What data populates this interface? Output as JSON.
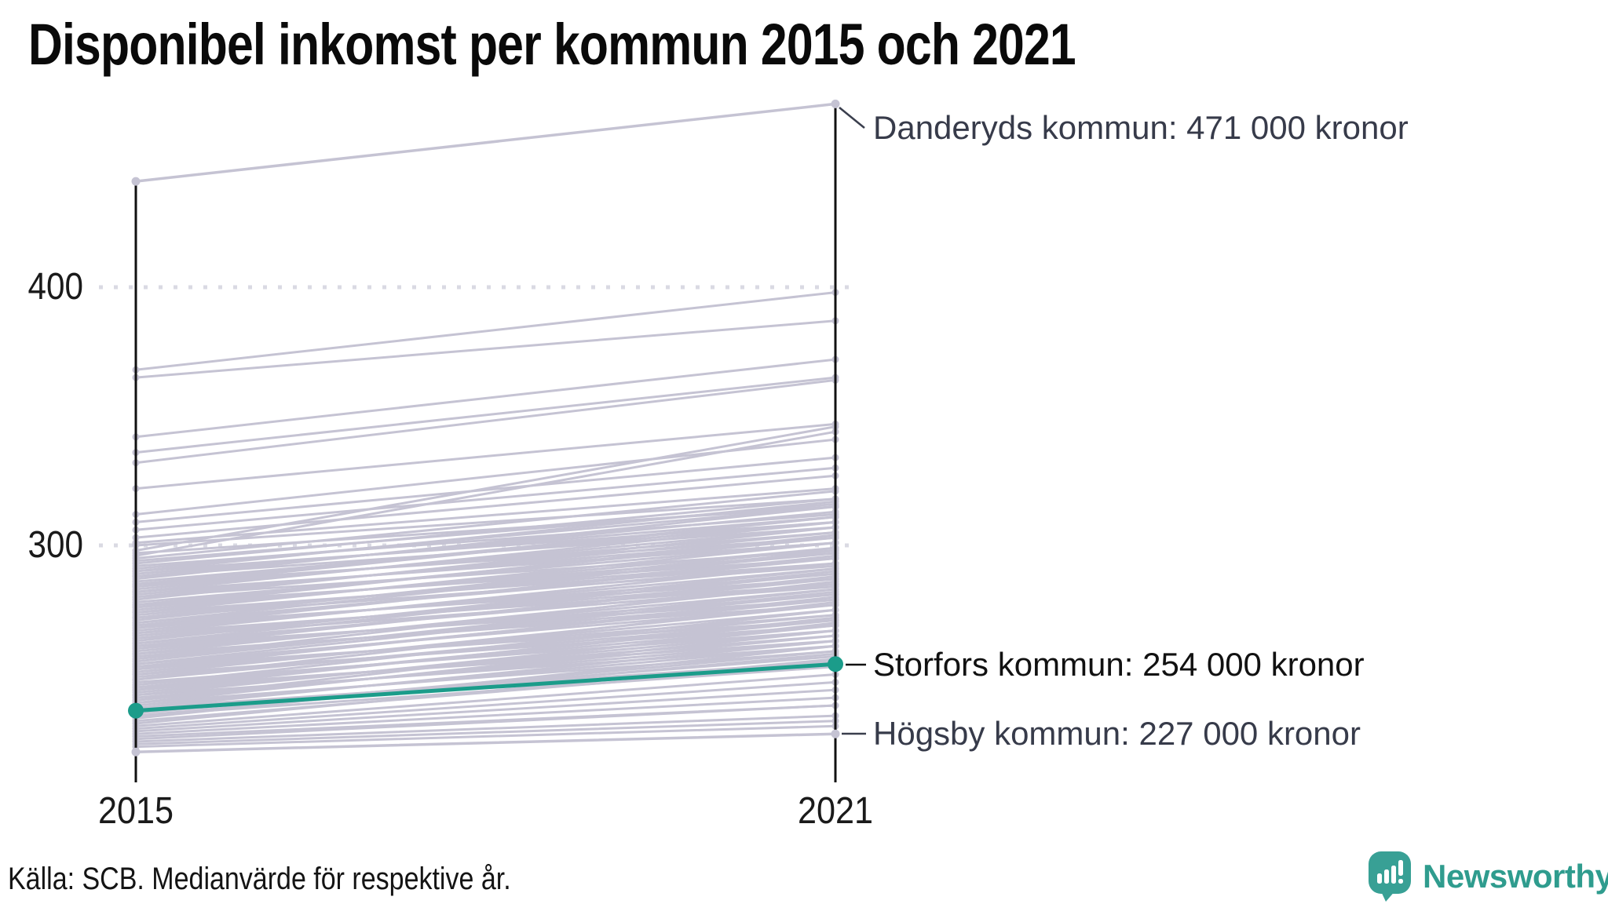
{
  "title": "Disponibel inkomst per kommun 2015 och 2021",
  "source": "Källa: SCB. Medianvärde för respektive år.",
  "logo": {
    "name": "Newsworthy"
  },
  "chart_data": {
    "type": "line",
    "subtype": "slope",
    "unit": "tusen kronor",
    "x_categories": [
      "2015",
      "2021"
    ],
    "y_ticks": [
      300,
      400
    ],
    "grid": "dotted horizontal lines at 300 and 400",
    "highlight": {
      "name": "Storfors kommun",
      "values": [
        236,
        254
      ],
      "label": "Storfors kommun: 254 000 kronor",
      "color": "#1b9c8a"
    },
    "labeled": [
      {
        "name": "Danderyds kommun",
        "values": [
          441,
          471
        ],
        "label": "Danderyds kommun: 471 000 kronor"
      },
      {
        "name": "Högsby kommun",
        "values": [
          220,
          227
        ],
        "label": "Högsby kommun: 227 000 kronor"
      }
    ],
    "background_lines": [
      [
        368,
        398
      ],
      [
        365,
        387
      ],
      [
        342,
        372
      ],
      [
        336,
        365
      ],
      [
        332,
        364
      ],
      [
        322,
        347
      ],
      [
        312,
        341
      ],
      [
        309,
        334
      ],
      [
        306,
        330
      ],
      [
        303,
        327
      ],
      [
        301,
        322
      ],
      [
        300,
        318
      ],
      [
        298,
        346
      ],
      [
        297,
        315
      ],
      [
        296,
        344
      ],
      [
        295,
        321
      ],
      [
        294,
        316
      ],
      [
        293,
        318
      ],
      [
        292,
        312
      ],
      [
        291,
        315
      ],
      [
        290,
        309
      ],
      [
        290,
        317
      ],
      [
        289,
        311
      ],
      [
        288,
        313
      ],
      [
        288,
        307
      ],
      [
        287,
        315
      ],
      [
        286,
        309
      ],
      [
        285,
        303
      ],
      [
        285,
        311
      ],
      [
        284,
        305
      ],
      [
        284,
        311
      ],
      [
        283,
        307
      ],
      [
        282,
        301
      ],
      [
        282,
        309
      ],
      [
        281,
        303
      ],
      [
        280,
        305
      ],
      [
        280,
        298
      ],
      [
        279,
        307
      ],
      [
        278,
        301
      ],
      [
        277,
        295
      ],
      [
        277,
        303
      ],
      [
        276,
        297
      ],
      [
        276,
        304
      ],
      [
        275,
        299
      ],
      [
        274,
        301
      ],
      [
        274,
        293
      ],
      [
        273,
        295
      ],
      [
        272,
        297
      ],
      [
        272,
        292
      ],
      [
        271,
        299
      ],
      [
        270,
        293
      ],
      [
        270,
        298
      ],
      [
        269,
        287
      ],
      [
        269,
        295
      ],
      [
        268,
        289
      ],
      [
        268,
        296
      ],
      [
        267,
        291
      ],
      [
        266,
        285
      ],
      [
        266,
        293
      ],
      [
        265,
        287
      ],
      [
        264,
        289
      ],
      [
        264,
        284
      ],
      [
        263,
        291
      ],
      [
        262,
        285
      ],
      [
        262,
        290
      ],
      [
        261,
        279
      ],
      [
        261,
        287
      ],
      [
        260,
        281
      ],
      [
        260,
        288
      ],
      [
        259,
        283
      ],
      [
        258,
        277
      ],
      [
        258,
        285
      ],
      [
        257,
        279
      ],
      [
        256,
        281
      ],
      [
        256,
        286
      ],
      [
        255,
        283
      ],
      [
        254,
        277
      ],
      [
        254,
        282
      ],
      [
        253,
        271
      ],
      [
        253,
        279
      ],
      [
        252,
        273
      ],
      [
        252,
        280
      ],
      [
        251,
        275
      ],
      [
        250,
        269
      ],
      [
        250,
        277
      ],
      [
        249,
        271
      ],
      [
        248,
        273
      ],
      [
        248,
        278
      ],
      [
        247,
        267
      ],
      [
        246,
        275
      ],
      [
        246,
        269
      ],
      [
        245,
        263
      ],
      [
        245,
        271
      ],
      [
        244,
        265
      ],
      [
        244,
        272
      ],
      [
        243,
        267
      ],
      [
        242,
        261
      ],
      [
        242,
        269
      ],
      [
        241,
        263
      ],
      [
        240,
        265
      ],
      [
        240,
        270
      ],
      [
        239,
        259
      ],
      [
        239,
        267
      ],
      [
        238,
        261
      ],
      [
        237,
        255
      ],
      [
        237,
        263
      ],
      [
        236,
        257
      ],
      [
        235,
        259
      ],
      [
        234,
        253
      ],
      [
        234,
        258
      ],
      [
        233,
        261
      ],
      [
        232,
        254
      ],
      [
        231,
        256
      ],
      [
        230,
        250
      ],
      [
        229,
        247
      ],
      [
        228,
        244
      ],
      [
        227,
        241
      ],
      [
        226,
        238
      ],
      [
        225,
        238
      ],
      [
        224,
        234
      ],
      [
        223,
        232
      ],
      [
        222,
        230
      ]
    ],
    "colors": {
      "background_line": "#c5c3d3",
      "axis": "#111111",
      "gridline": "#dadae3",
      "annotation_text": "#373b4a",
      "highlight_text": "#111111",
      "connector": "#3a3e4d"
    }
  }
}
